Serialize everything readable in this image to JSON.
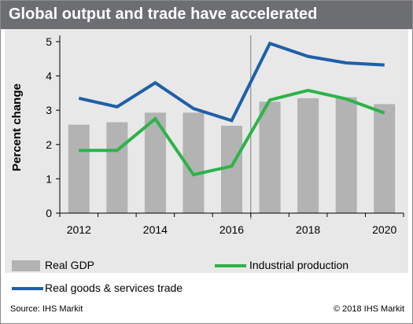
{
  "header": {
    "title": "Global output and trade have accelerated"
  },
  "footer": {
    "source": "Source:  IHS Markit",
    "copyright": "© 2018  IHS Markit"
  },
  "chart_data": {
    "type": "bar",
    "title": "Global output and trade have accelerated",
    "ylabel": "Percent change",
    "xlabel": "",
    "x": [
      2012,
      2013,
      2014,
      2015,
      2016,
      2017,
      2018,
      2019,
      2020
    ],
    "x_tick_labels": [
      "2012",
      "2014",
      "2016",
      "2018",
      "2020"
    ],
    "x_tick_values": [
      2012,
      2014,
      2016,
      2018,
      2020
    ],
    "ylim": [
      0,
      5
    ],
    "y_ticks": [
      0,
      1,
      2,
      3,
      4,
      5
    ],
    "forecast_divider_after": 2016,
    "legend_placement": "bottom",
    "grid": false,
    "series": [
      {
        "name": "Real GDP",
        "kind": "bar",
        "color": "#b3b3b3",
        "values": [
          2.58,
          2.65,
          2.93,
          2.93,
          2.55,
          3.25,
          3.35,
          3.38,
          3.18
        ]
      },
      {
        "name": "Industrial production",
        "kind": "line",
        "color": "#2db34a",
        "values": [
          1.83,
          1.83,
          2.75,
          1.12,
          1.37,
          3.3,
          3.58,
          3.33,
          2.92
        ]
      },
      {
        "name": "Real goods & services trade",
        "kind": "line",
        "color": "#1f5fa8",
        "values": [
          3.35,
          3.1,
          3.8,
          3.05,
          2.7,
          4.95,
          4.57,
          4.38,
          4.32
        ]
      }
    ]
  }
}
